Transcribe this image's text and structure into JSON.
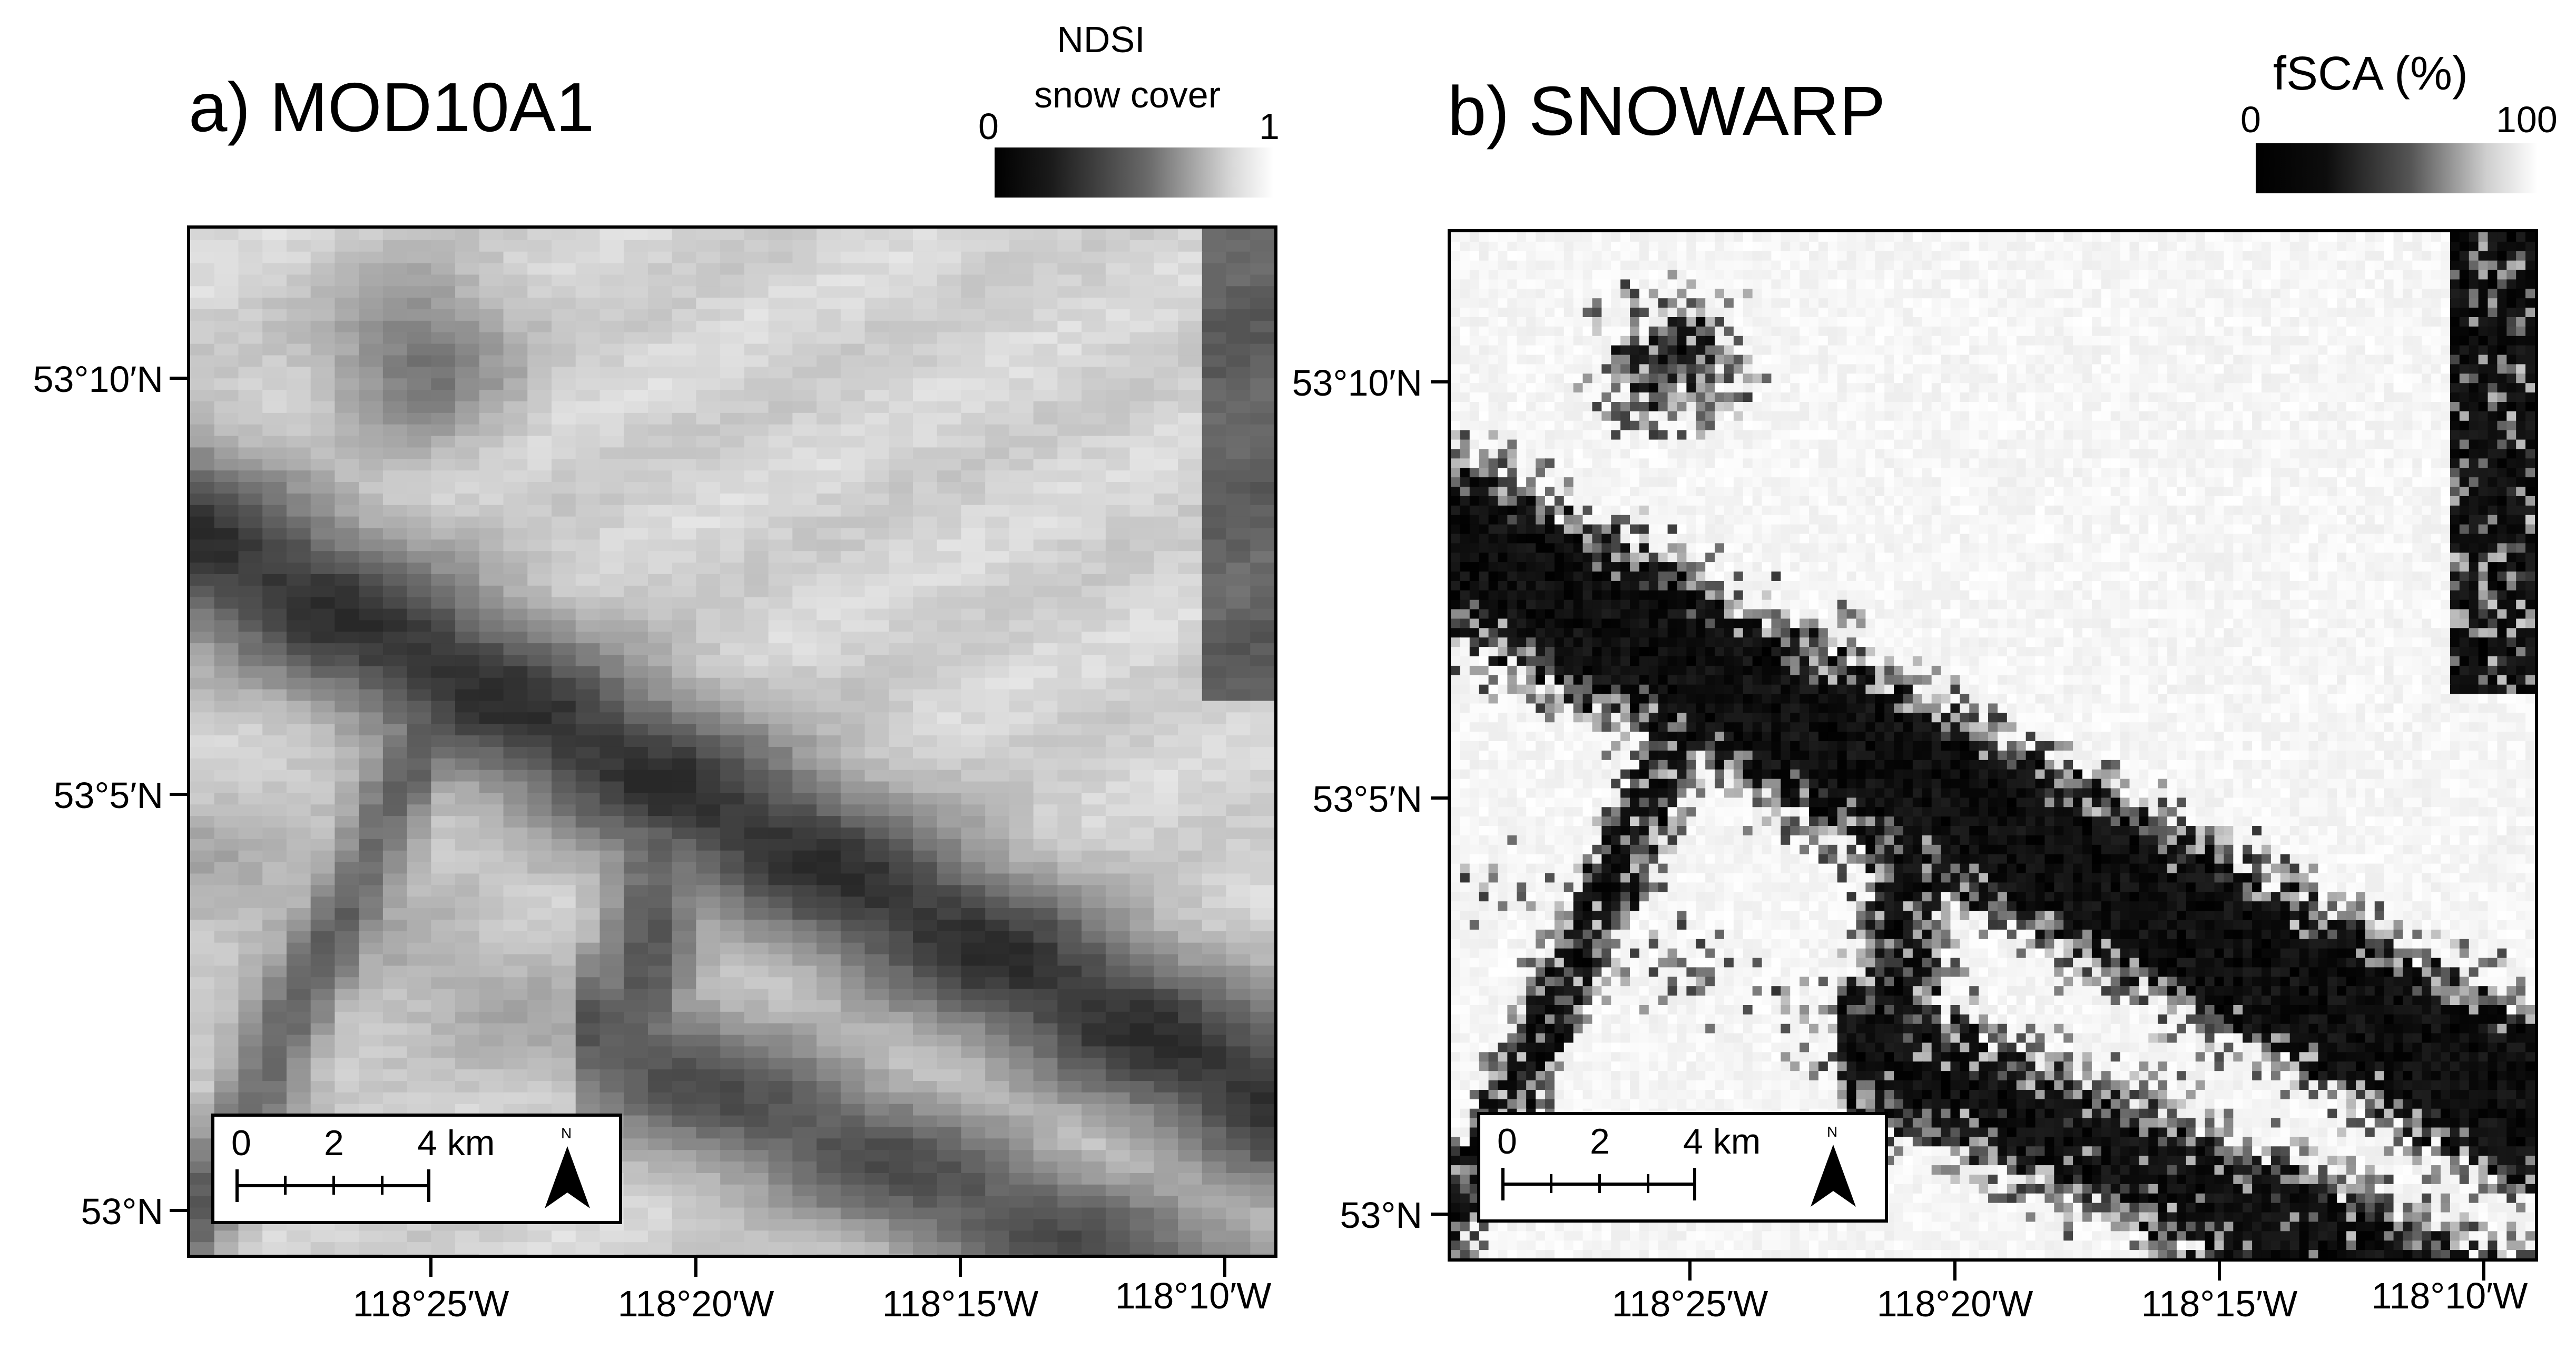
{
  "panels": [
    {
      "title": "a) MOD10A1",
      "colorbar": {
        "label_line1": "NDSI",
        "label_line2": "snow cover",
        "min": "0",
        "max": "1"
      },
      "map_style": "coarse"
    },
    {
      "title": "b) SNOWARP",
      "colorbar": {
        "label_line1": "fSCA (%)",
        "label_line2": "",
        "min": "0",
        "max": "100"
      },
      "map_style": "fine"
    }
  ],
  "lat_ticks": [
    "53°10′N",
    "53°5′N",
    "53°N"
  ],
  "lon_ticks": [
    "118°25′W",
    "118°20′W",
    "118°15′W",
    "118°10′W"
  ],
  "scalebar": {
    "labels": [
      "0",
      "2",
      "4 km"
    ],
    "north": "N"
  },
  "colors": {
    "frame": "#000000",
    "background": "#ffffff"
  }
}
